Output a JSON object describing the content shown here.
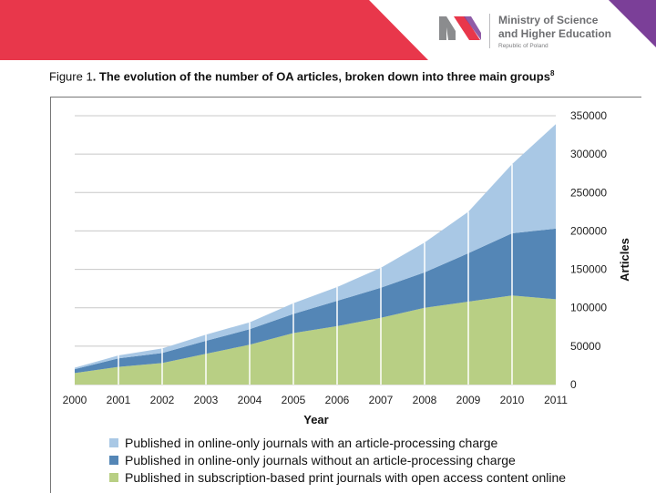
{
  "header": {
    "ministry_line1": "Ministry of Science",
    "ministry_line2": "and Higher Education",
    "ministry_sub": "Republic of Poland",
    "colors": {
      "red": "#e8374b",
      "purple": "#7b3f98",
      "logo_gray": "#8b8c8e"
    }
  },
  "figure": {
    "label": "Figure 1",
    "title": ". The evolution of the number of OA articles, broken down into three main groups",
    "footnote_marker": "8"
  },
  "chart_data": {
    "type": "area",
    "stacked": true,
    "title": "",
    "xlabel": "Year",
    "ylabel": "Articles",
    "x": [
      2000,
      2001,
      2002,
      2003,
      2004,
      2005,
      2006,
      2007,
      2008,
      2009,
      2010,
      2011
    ],
    "x_tick_labels": [
      "2000",
      "2001",
      "2002",
      "2003",
      "2004",
      "2005",
      "2006",
      "2007",
      "2008",
      "2009",
      "2010",
      "2011"
    ],
    "ylim": [
      0,
      350000
    ],
    "y_ticks": [
      0,
      50000,
      100000,
      150000,
      200000,
      250000,
      300000,
      350000
    ],
    "y_tick_labels": [
      "0",
      "50000",
      "100000",
      "150000",
      "200000",
      "250000",
      "300000",
      "350000"
    ],
    "y_axis_side": "right",
    "grid": true,
    "series": [
      {
        "name": "Published in subscription-based print journals with open access content online",
        "color": "#b8cf84",
        "values": [
          15000,
          23000,
          28000,
          40000,
          52000,
          67000,
          76000,
          87000,
          100000,
          108000,
          116000,
          111000
        ]
      },
      {
        "name": "Published in online-only journals without an article-processing charge",
        "color": "#5486b6",
        "values": [
          5000,
          11000,
          13000,
          17000,
          20000,
          25000,
          33000,
          39000,
          46000,
          63000,
          81000,
          92000
        ]
      },
      {
        "name": "Published in online-only journals with an article-processing charge",
        "color": "#a9c8e5",
        "values": [
          2000,
          4000,
          6000,
          8000,
          9000,
          14000,
          18000,
          26000,
          39000,
          54000,
          90000,
          136000
        ]
      }
    ],
    "legend_order": [
      2,
      1,
      0
    ],
    "legend_position": "bottom"
  }
}
